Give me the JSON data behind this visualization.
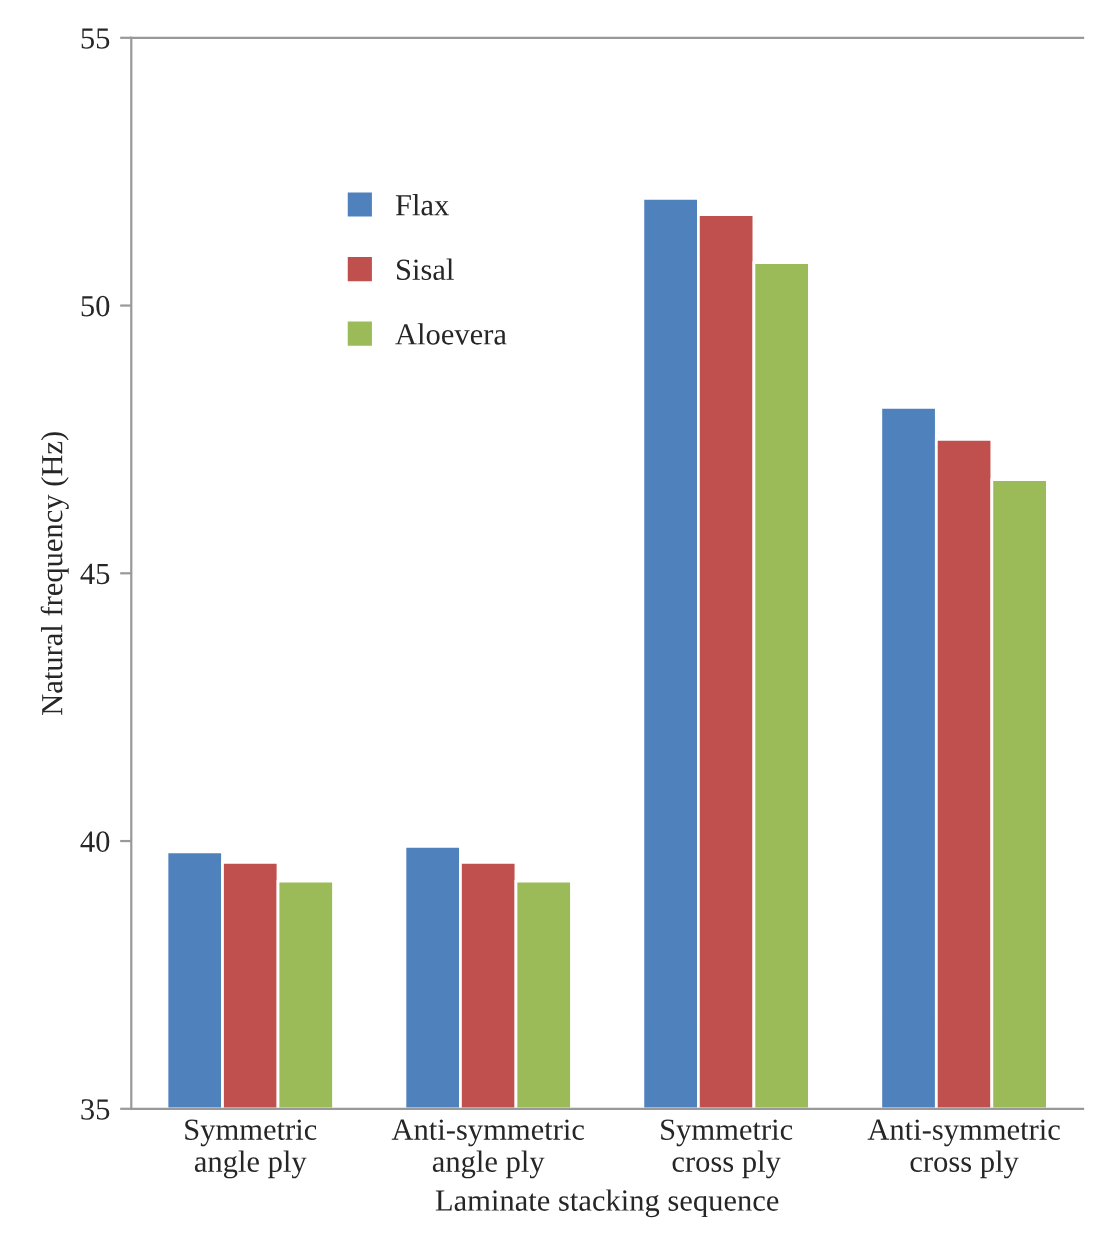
{
  "chart_data": {
    "type": "bar",
    "xlabel": "Laminate stacking sequence",
    "ylabel": "Natural frequency (Hz)",
    "categories": [
      "Symmetric\nangle ply",
      "Anti-symmetric\nangle ply",
      "Symmetric\ncross ply",
      "Anti-symmetric\ncross ply"
    ],
    "series": [
      {
        "name": "Flax",
        "color": "#4f81bd",
        "values": [
          39.8,
          39.9,
          52.0,
          48.1
        ]
      },
      {
        "name": "Sisal",
        "color": "#c0504d",
        "values": [
          39.6,
          39.6,
          51.7,
          47.5
        ]
      },
      {
        "name": "Aloevera",
        "color": "#9bbb59",
        "values": [
          39.25,
          39.25,
          50.8,
          46.75
        ]
      }
    ],
    "ylim": [
      35,
      55
    ],
    "yticks": [
      35,
      40,
      45,
      50,
      55
    ],
    "grid": false,
    "legend": "top left"
  }
}
